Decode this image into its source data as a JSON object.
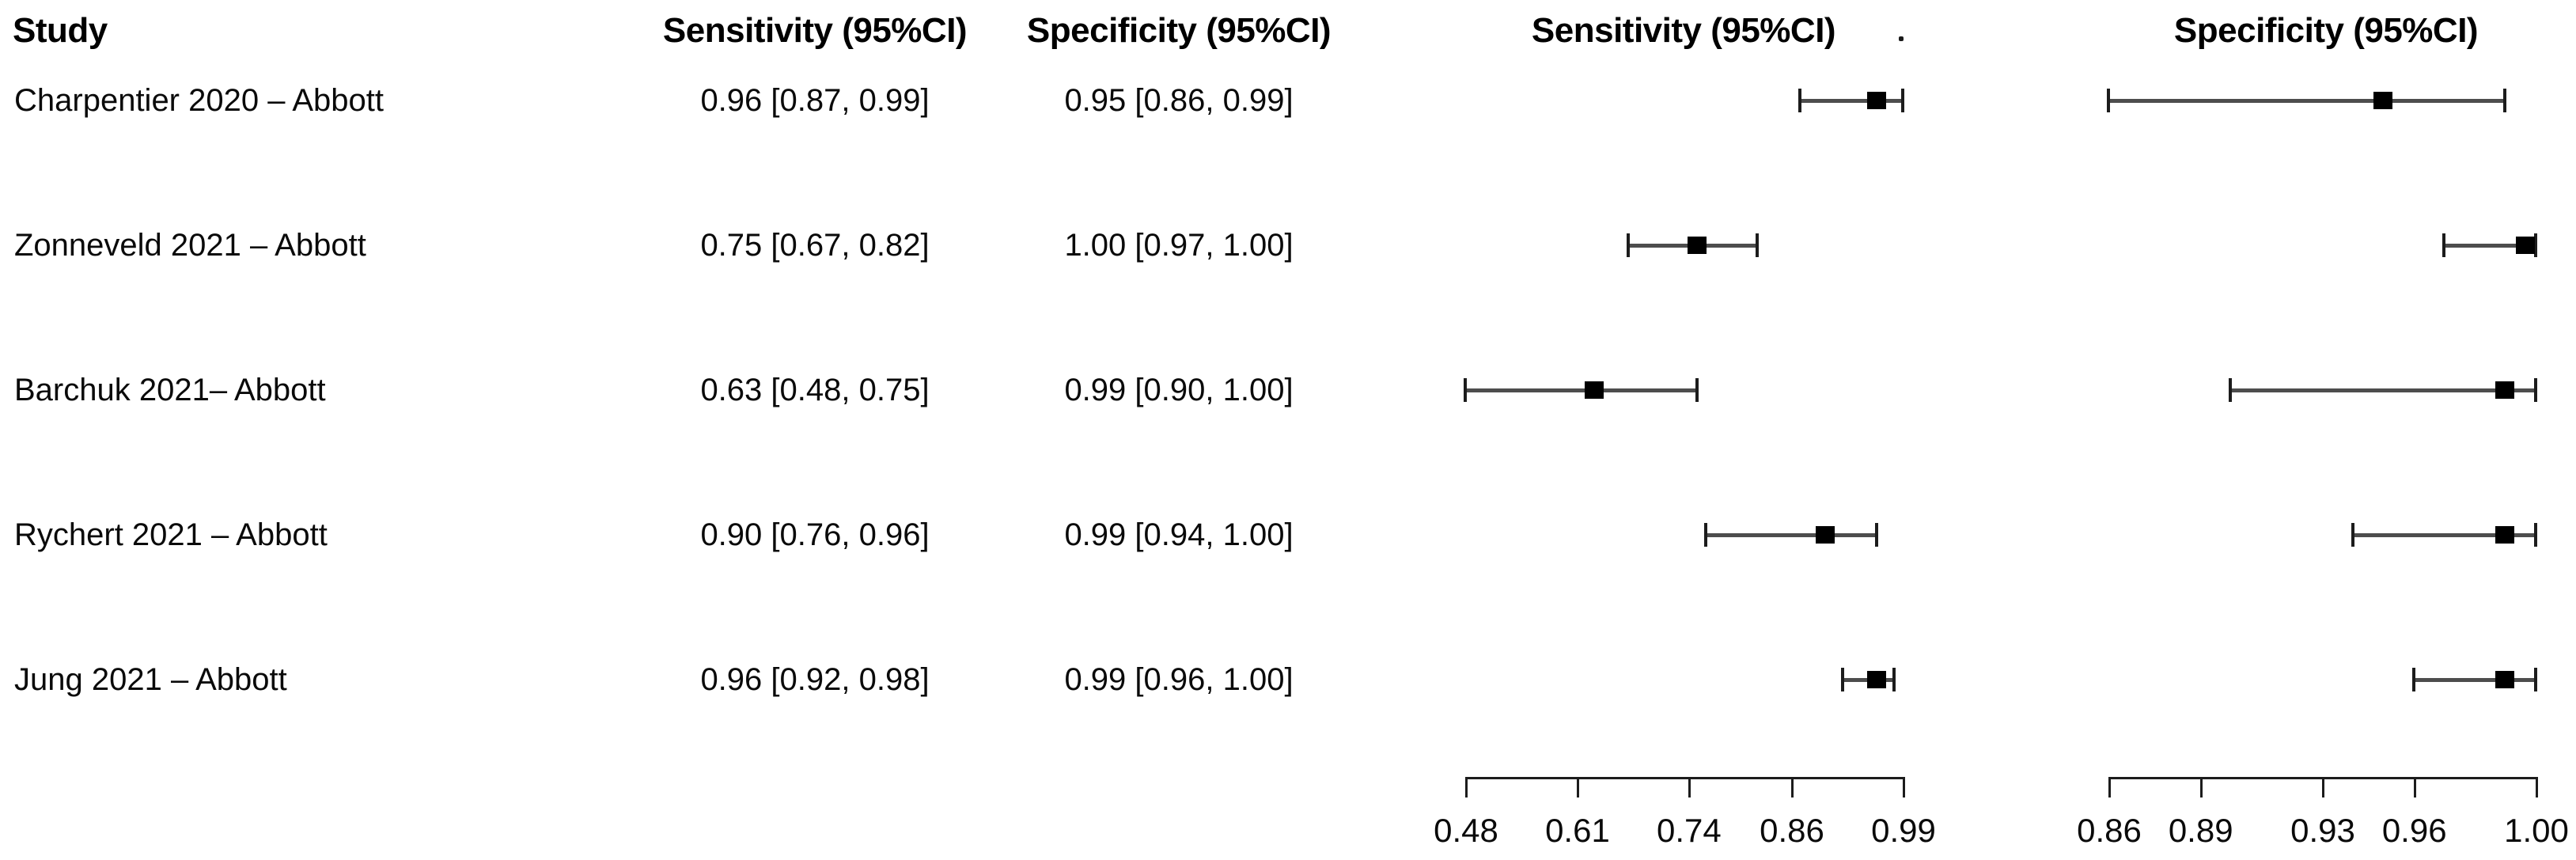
{
  "figure": {
    "background": "#ffffff",
    "text_color": "#000000",
    "marker_color": "#000000",
    "ci_line_color": "#4d4d4d"
  },
  "table": {
    "columns": {
      "study": "Study",
      "sensitivity": "Sensitivity (95%CI)",
      "specificity": "Specificity (95%CI)"
    },
    "rows": [
      {
        "study": "Charpentier 2020 – Abbott",
        "sensitivity": "0.96 [0.87, 0.99]",
        "specificity": "0.95 [0.86, 0.99]"
      },
      {
        "study": "Zonneveld 2021 – Abbott",
        "sensitivity": "0.75 [0.67, 0.82]",
        "specificity": "1.00 [0.97, 1.00]"
      },
      {
        "study": "Barchuk 2021– Abbott",
        "sensitivity": "0.63 [0.48, 0.75]",
        "specificity": "0.99 [0.90, 1.00]"
      },
      {
        "study": "Rychert 2021 – Abbott",
        "sensitivity": "0.90 [0.76, 0.96]",
        "specificity": "0.99 [0.94, 1.00]"
      },
      {
        "study": "Jung 2021 – Abbott",
        "sensitivity": "0.96 [0.92, 0.98]",
        "specificity": "0.99 [0.96, 1.00]"
      }
    ]
  },
  "plots": {
    "sensitivity_title": "Sensitivity (95%CI)",
    "specificity_title": "Specificity (95%CI)",
    "stray_dot": "."
  },
  "chart_data": [
    {
      "type": "forest",
      "title": "Sensitivity (95%CI)",
      "studies": [
        "Charpentier 2020 – Abbott",
        "Zonneveld 2021 – Abbott",
        "Barchuk 2021– Abbott",
        "Rychert 2021 – Abbott",
        "Jung 2021 – Abbott"
      ],
      "estimates": [
        0.96,
        0.75,
        0.63,
        0.9,
        0.96
      ],
      "ci_low": [
        0.87,
        0.67,
        0.48,
        0.76,
        0.92
      ],
      "ci_high": [
        0.99,
        0.82,
        0.75,
        0.96,
        0.98
      ],
      "xticks": [
        0.48,
        0.61,
        0.74,
        0.86,
        0.99
      ],
      "xlim": [
        0.48,
        0.99
      ],
      "grid": false,
      "legend": false
    },
    {
      "type": "forest",
      "title": "Specificity (95%CI)",
      "studies": [
        "Charpentier 2020 – Abbott",
        "Zonneveld 2021 – Abbott",
        "Barchuk 2021– Abbott",
        "Rychert 2021 – Abbott",
        "Jung 2021 – Abbott"
      ],
      "estimates": [
        0.95,
        1.0,
        0.99,
        0.99,
        0.99
      ],
      "ci_low": [
        0.86,
        0.97,
        0.9,
        0.94,
        0.96
      ],
      "ci_high": [
        0.99,
        1.0,
        1.0,
        1.0,
        1.0
      ],
      "xticks": [
        0.86,
        0.89,
        0.93,
        0.96,
        1.0
      ],
      "xlim": [
        0.86,
        1.0
      ],
      "grid": false,
      "legend": false
    }
  ]
}
